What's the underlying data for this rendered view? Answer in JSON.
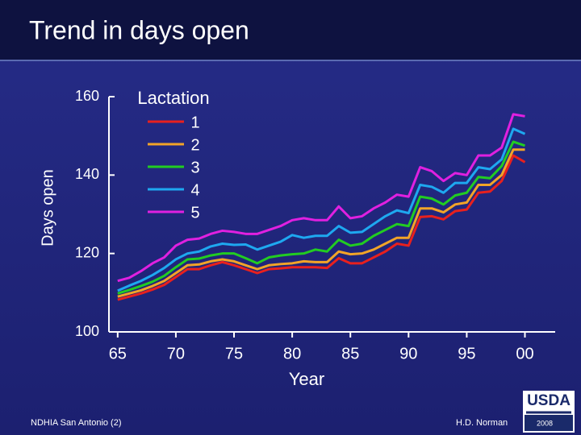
{
  "chart_data": {
    "type": "line",
    "title": "Trend in days open",
    "y_label": "Days open",
    "x_label": "Year",
    "legend_title": "Lactation",
    "legend_position": "upper-left",
    "x": [
      1965,
      1966,
      1967,
      1968,
      1969,
      1970,
      1971,
      1972,
      1973,
      1974,
      1975,
      1976,
      1977,
      1978,
      1979,
      1980,
      1981,
      1982,
      1983,
      1984,
      1985,
      1986,
      1987,
      1988,
      1989,
      1990,
      1991,
      1992,
      1993,
      1994,
      1995,
      1996,
      1997,
      1998,
      1999,
      2000
    ],
    "xlim": [
      1964.25,
      2002.6
    ],
    "xticks": [
      {
        "value": 1965,
        "label": "65"
      },
      {
        "value": 1970,
        "label": "70"
      },
      {
        "value": 1975,
        "label": "75"
      },
      {
        "value": 1980,
        "label": "80"
      },
      {
        "value": 1985,
        "label": "85"
      },
      {
        "value": 1990,
        "label": "90"
      },
      {
        "value": 1995,
        "label": "95"
      },
      {
        "value": 2000,
        "label": "00"
      }
    ],
    "ylim": [
      100,
      160
    ],
    "yticks": [
      100,
      120,
      140,
      160
    ],
    "series": [
      {
        "name": "1",
        "color": "#e8201e",
        "values": [
          108.2,
          109,
          109.8,
          110.8,
          112,
          114,
          116,
          116,
          117,
          117.8,
          117,
          116,
          115,
          116,
          116.2,
          116.5,
          116.5,
          116.5,
          116.3,
          118.8,
          117.5,
          117.5,
          119,
          120.5,
          122.5,
          122,
          129.3,
          129.5,
          128.7,
          130.8,
          131.2,
          135.5,
          135.8,
          138.5,
          145,
          143.3
        ]
      },
      {
        "name": "2",
        "color": "#f2a428",
        "values": [
          109,
          109.8,
          110.6,
          111.7,
          113,
          115,
          117,
          117.2,
          118,
          118.5,
          118,
          117,
          116,
          117,
          117.3,
          117.5,
          118,
          117.8,
          117.8,
          120.5,
          119.8,
          120,
          121,
          122.5,
          124,
          124,
          131.5,
          131.5,
          130.5,
          132.5,
          133,
          137.5,
          137.5,
          140,
          146.5,
          146.5
        ]
      },
      {
        "name": "3",
        "color": "#22cc22",
        "values": [
          109.8,
          110.7,
          111.7,
          112.8,
          114.3,
          116.5,
          118.5,
          118.7,
          119.5,
          120,
          120,
          118.8,
          117.5,
          119,
          119.5,
          119.8,
          120,
          121,
          120.5,
          123.5,
          122,
          122.5,
          124.5,
          126,
          127.5,
          127,
          134.5,
          134,
          132.5,
          134.8,
          135.5,
          139.5,
          139.2,
          142.3,
          148.5,
          147.5
        ]
      },
      {
        "name": "4",
        "color": "#1ea8f0",
        "values": [
          110.5,
          111.8,
          113,
          114.5,
          116.3,
          118.5,
          120,
          120.5,
          121.8,
          122.5,
          122.2,
          122.3,
          121,
          122,
          123,
          124.7,
          124,
          124.5,
          124.5,
          127,
          125.3,
          125.5,
          127.5,
          129.5,
          131,
          130.3,
          137.5,
          137,
          135.5,
          138,
          138,
          142,
          141.5,
          144,
          151.8,
          150.5
        ]
      },
      {
        "name": "5",
        "color": "#e020e0",
        "values": [
          113,
          113.8,
          115.5,
          117.5,
          119,
          122,
          123.5,
          123.8,
          125,
          125.8,
          125.5,
          125,
          125,
          126,
          127,
          128.5,
          129,
          128.5,
          128.5,
          132,
          129,
          129.5,
          131.5,
          133,
          135,
          134.5,
          142,
          141,
          138.5,
          140.5,
          140,
          145,
          145,
          147,
          155.5,
          155
        ]
      }
    ]
  },
  "footer": {
    "left": "NDHIA San Antonio (2)",
    "right": "H.D. Norman"
  },
  "logo": {
    "text": "USDA",
    "year": "2008"
  }
}
